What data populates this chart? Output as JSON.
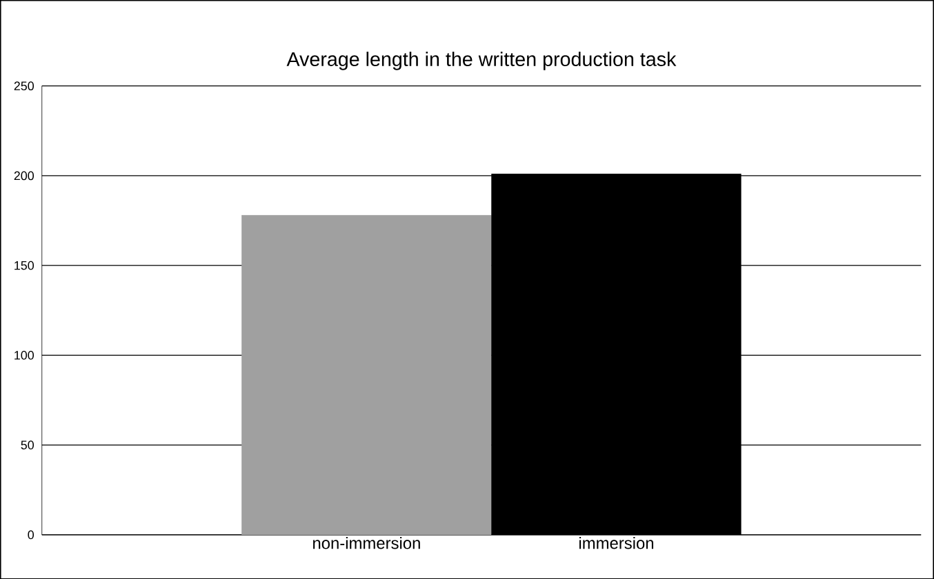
{
  "chart_data": {
    "type": "bar",
    "title": "Average length in the written production task",
    "categories": [
      "non-immersion",
      "immersion"
    ],
    "values": [
      178,
      201
    ],
    "colors": [
      "#a0a0a0",
      "#000000"
    ],
    "ylim": [
      0,
      250
    ],
    "yticks": [
      0,
      50,
      100,
      150,
      200,
      250
    ],
    "grid": "y"
  }
}
